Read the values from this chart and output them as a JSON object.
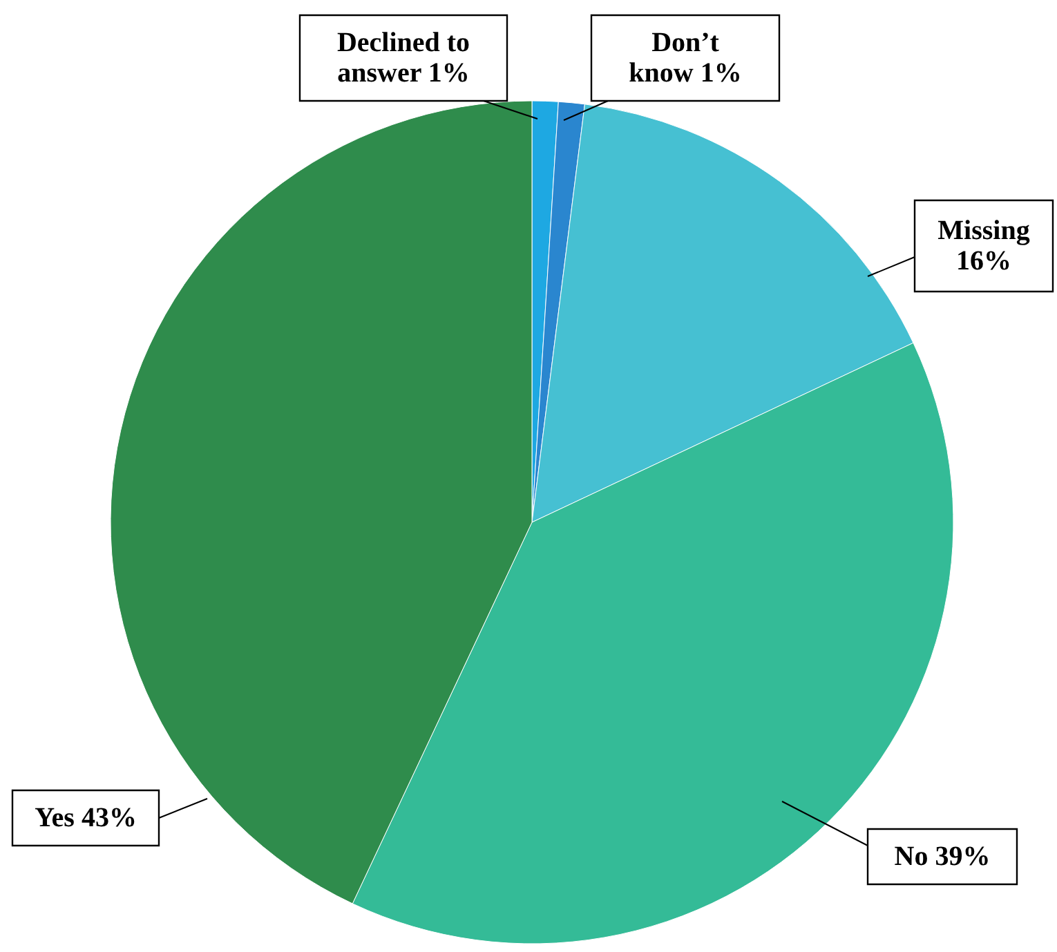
{
  "chart_data": {
    "type": "pie",
    "categories": [
      "Declined to answer",
      "Don’t know",
      "Missing",
      "No",
      "Yes"
    ],
    "values": [
      1,
      1,
      16,
      39,
      43
    ],
    "value_labels": [
      "1%",
      "1%",
      "16%",
      "39%",
      "43%"
    ],
    "colors": [
      "#1ea8e2",
      "#2a86cf",
      "#46c0d2",
      "#34bb97",
      "#2f8c4c"
    ]
  }
}
